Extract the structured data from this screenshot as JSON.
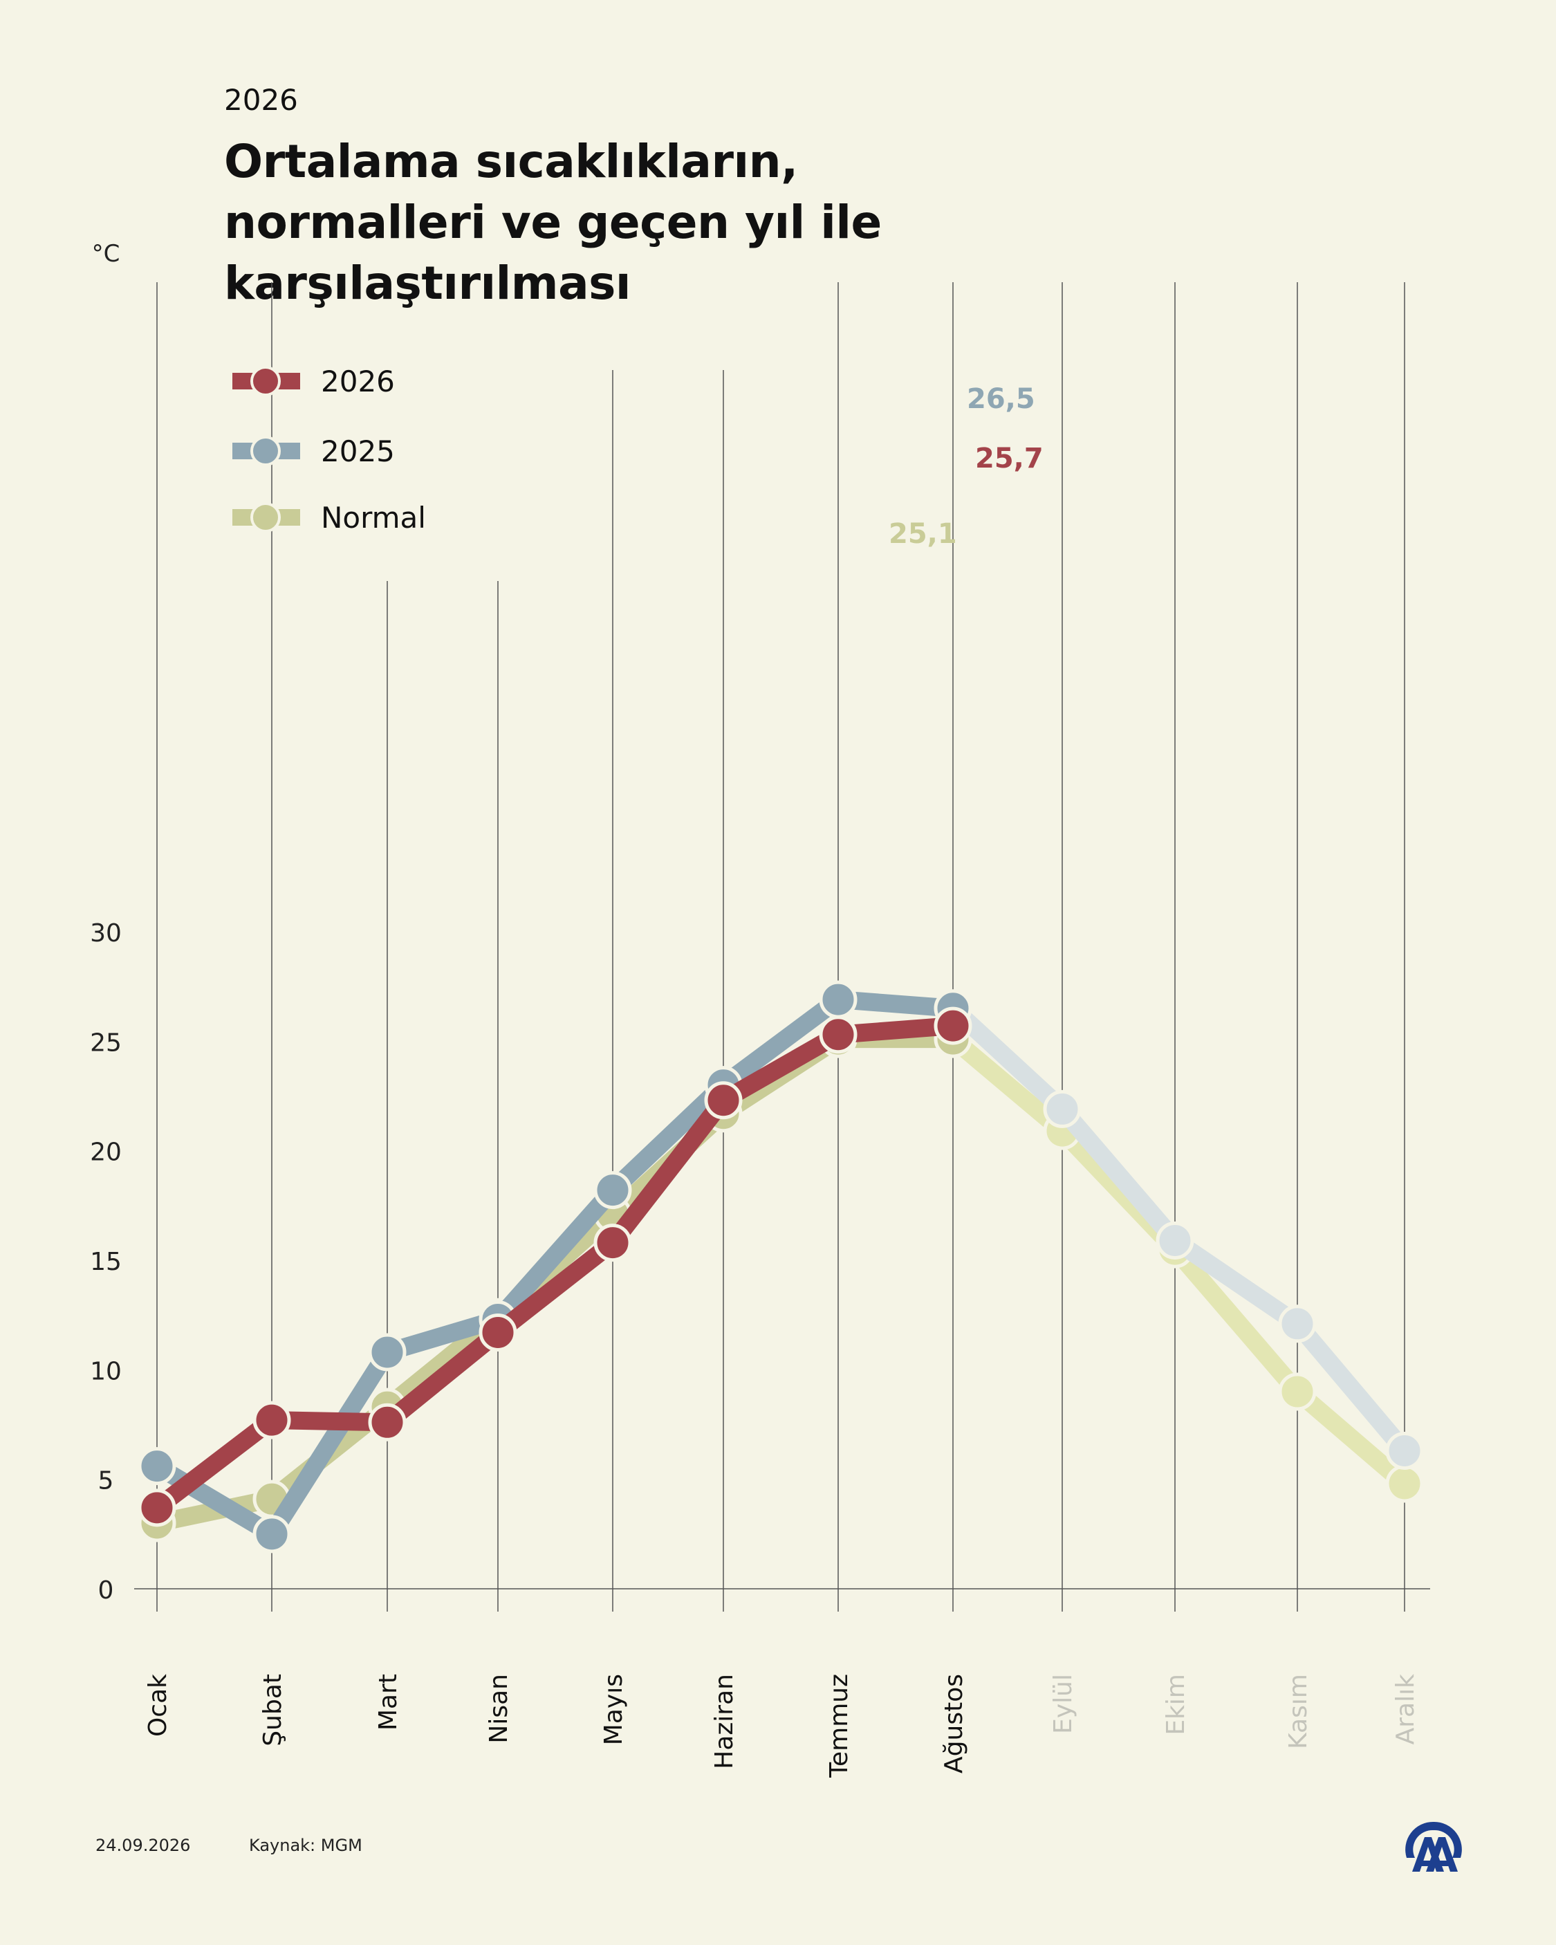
{
  "header": {
    "overline": "2026",
    "title_lines": [
      "Ortalama sıcaklıkların,",
      "normalleri ve geçen yıl ile",
      "karşılaştırılması"
    ]
  },
  "footer": {
    "date": "24.09.2026",
    "source": "Kaynak: MGM"
  },
  "logo": {
    "icon": "aa-logo-icon",
    "color": "#1d3f8f"
  },
  "chart_data": {
    "type": "line",
    "ylabel": "°C",
    "ylim": [
      0,
      30
    ],
    "yticks": [
      "0",
      "5",
      "10",
      "15",
      "20",
      "25",
      "30"
    ],
    "grid": "vertical lines per month",
    "legend_position": "top-left",
    "categories": [
      "Ocak",
      "Şubat",
      "Mart",
      "Nisan",
      "Mayıs",
      "Haziran",
      "Temmuz",
      "Ağustos",
      "Eylül",
      "Ekim",
      "Kasım",
      "Aralık"
    ],
    "faded_from_index": 8,
    "series": [
      {
        "name": "Normal",
        "color": "#c9cc97",
        "faded_color": "#e3e6b3",
        "values": [
          3.0,
          4.1,
          8.3,
          12.4,
          17.1,
          21.7,
          25.1,
          25.1,
          20.9,
          15.5,
          9.0,
          4.8
        ],
        "end_label": "25,1"
      },
      {
        "name": "2025",
        "color": "#8ea6b3",
        "faded_color": "#d8e0e2",
        "values": [
          5.6,
          2.5,
          10.8,
          12.3,
          18.2,
          23.0,
          26.9,
          26.5,
          21.9,
          15.9,
          12.1,
          6.3
        ],
        "end_label": "26,5"
      },
      {
        "name": "2026",
        "color": "#a3434a",
        "faded_color": "#a3434a",
        "values": [
          3.7,
          7.7,
          7.6,
          11.7,
          15.8,
          22.3,
          25.3,
          25.7,
          null,
          null,
          null,
          null
        ],
        "end_label": "25,7"
      }
    ],
    "legend_order": [
      "2026",
      "2025",
      "Normal"
    ]
  }
}
